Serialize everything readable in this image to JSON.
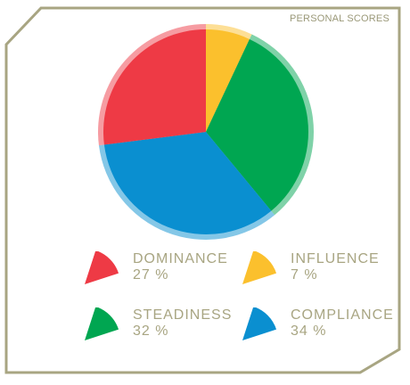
{
  "panel": {
    "title": "PERSONAL SCORES",
    "border_color": "#a8a582"
  },
  "chart_data": {
    "type": "pie",
    "title": "",
    "start_angle_deg": 0,
    "direction": "clockwise",
    "slices": [
      {
        "label": "INFLUENCE",
        "value": 7,
        "percent_text": "7 %",
        "color": "#fbc02d"
      },
      {
        "label": "STEADINESS",
        "value": 32,
        "percent_text": "32 %",
        "color": "#00a651"
      },
      {
        "label": "COMPLIANCE",
        "value": 34,
        "percent_text": "34 %",
        "color": "#0a8fd0"
      },
      {
        "label": "DOMINANCE",
        "value": 27,
        "percent_text": "27 %",
        "color": "#ee3a45"
      }
    ],
    "legend": [
      {
        "label": "DOMINANCE",
        "percent_text": "27 %",
        "color": "#ee3a45",
        "icon": "pie-wedge-icon"
      },
      {
        "label": "INFLUENCE",
        "percent_text": "7 %",
        "color": "#fbc02d",
        "icon": "pie-wedge-icon"
      },
      {
        "label": "STEADINESS",
        "percent_text": "32 %",
        "color": "#00a651",
        "icon": "pie-wedge-icon"
      },
      {
        "label": "COMPLIANCE",
        "percent_text": "34 %",
        "color": "#0a8fd0",
        "icon": "pie-wedge-icon"
      }
    ]
  }
}
